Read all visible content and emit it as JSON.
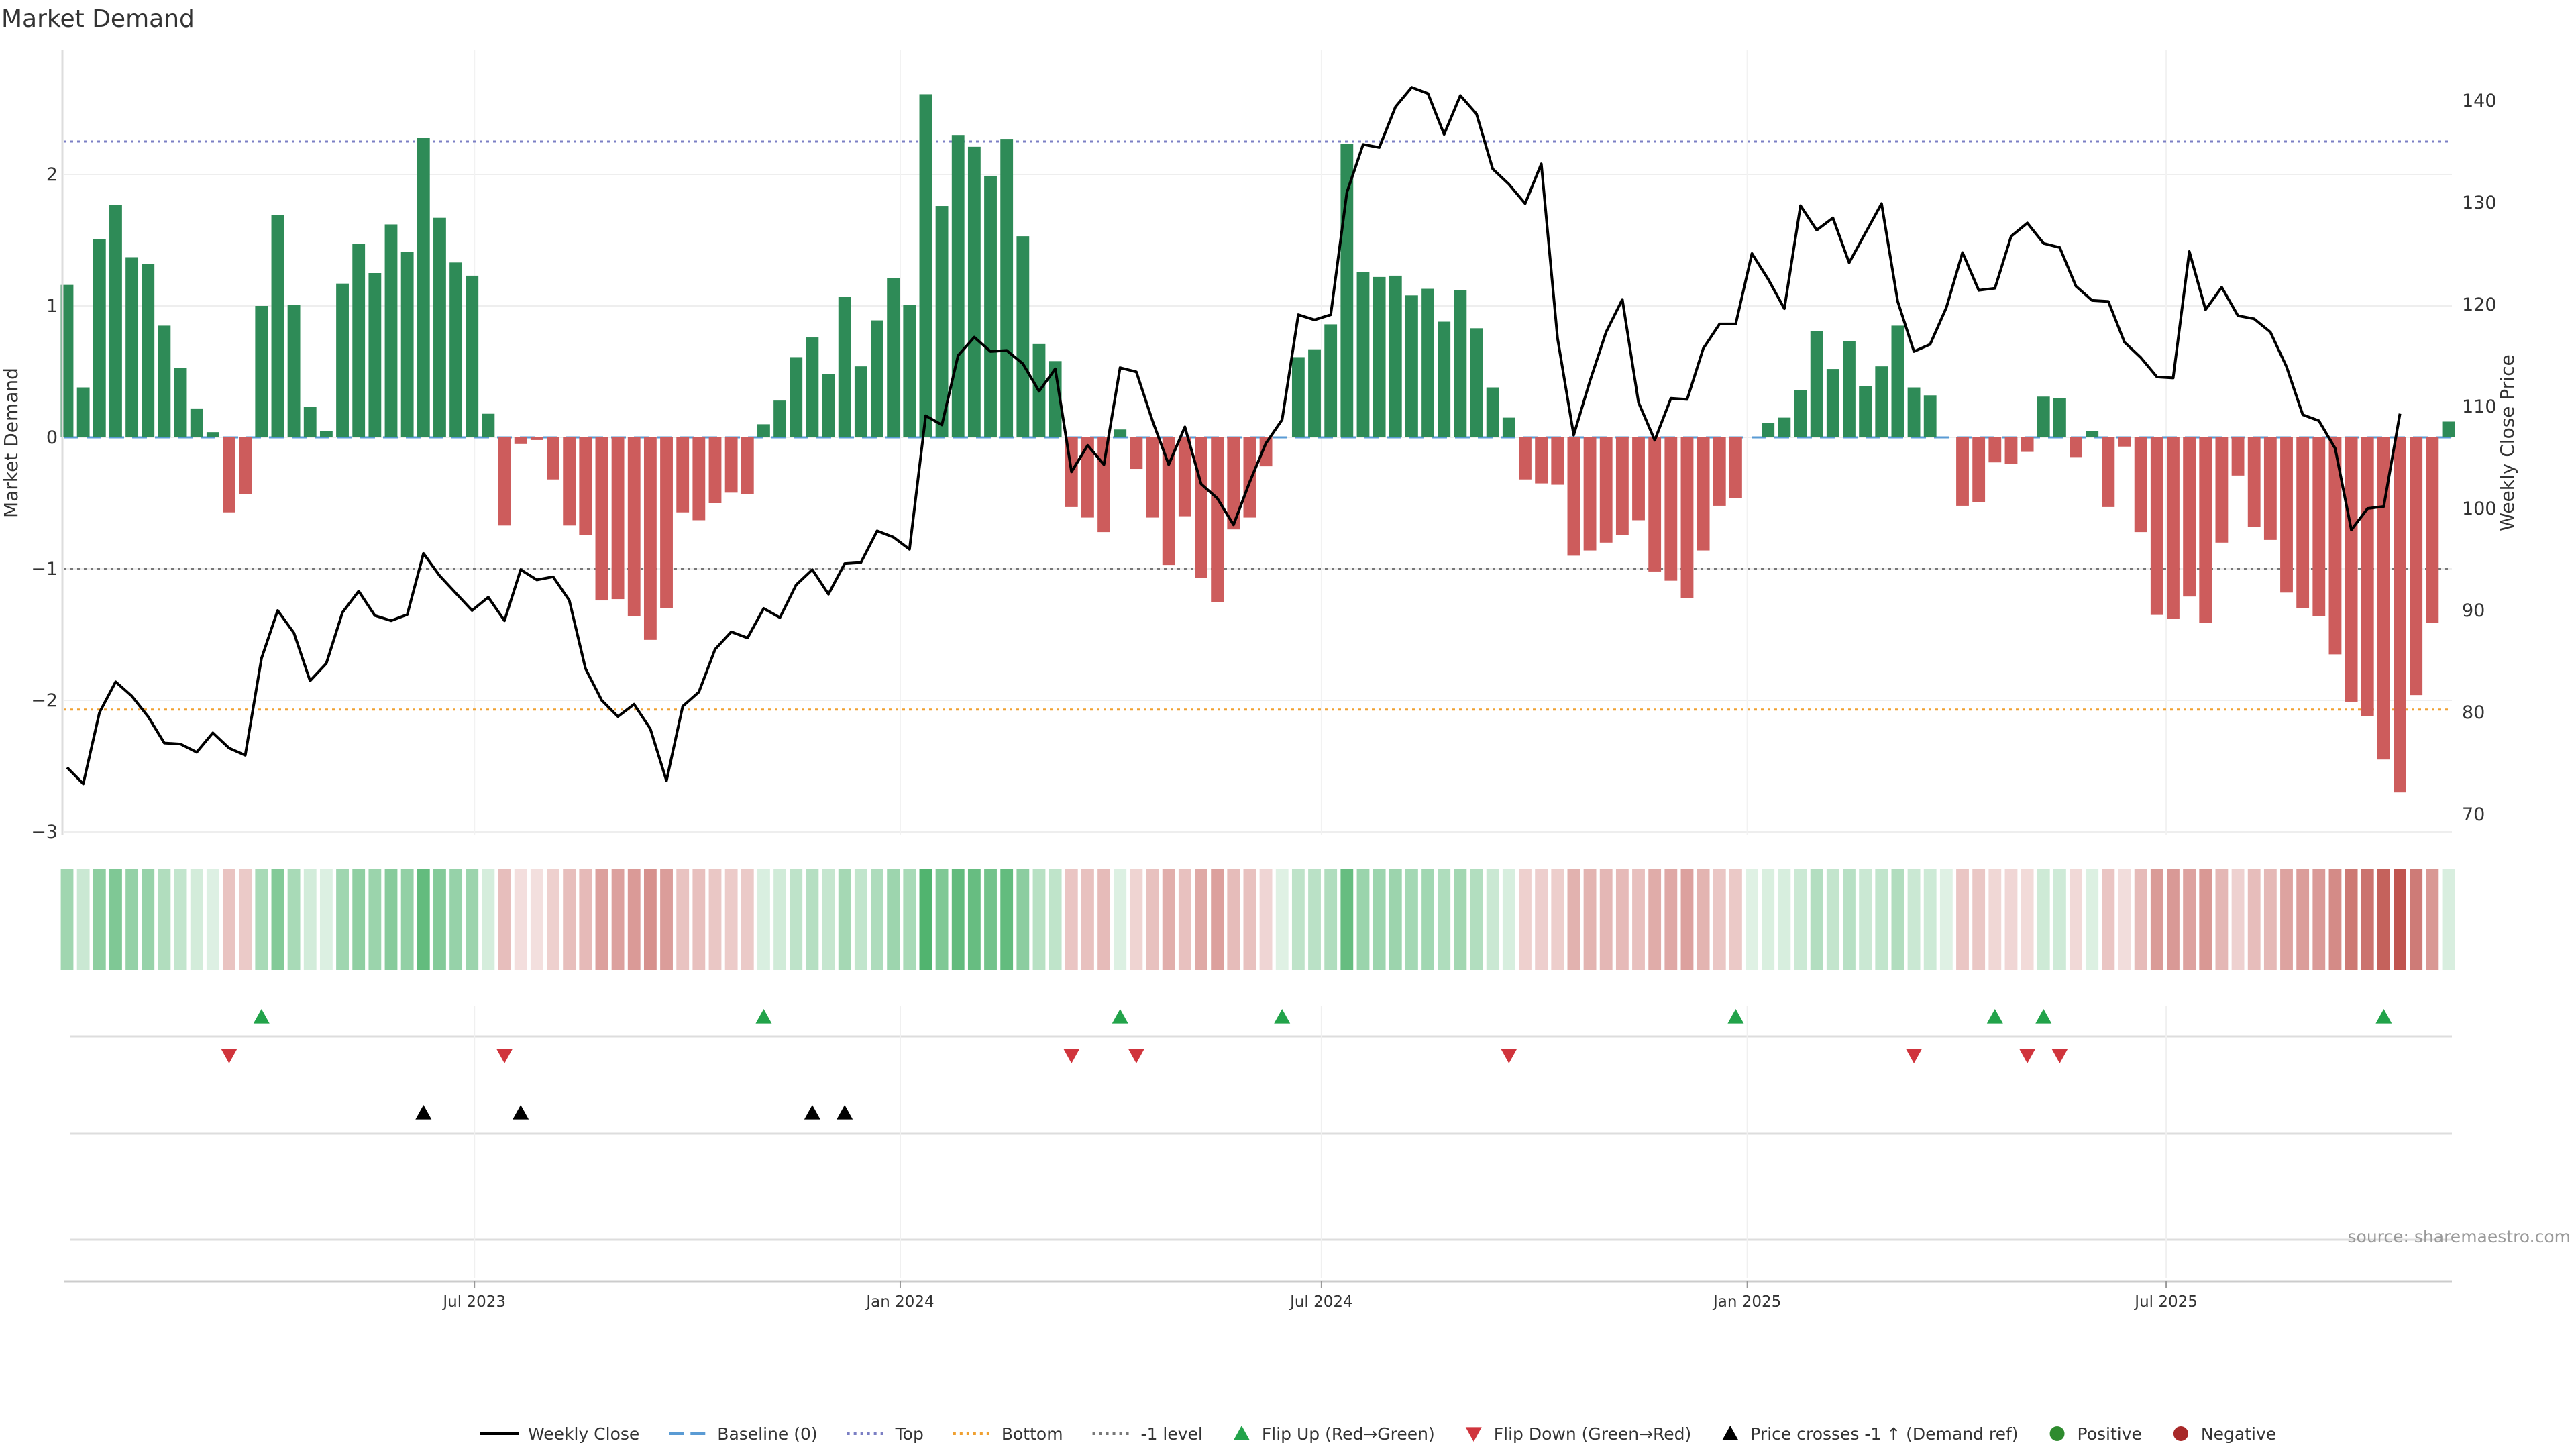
{
  "chart_data": {
    "type": "bar",
    "title": "Market Demand",
    "ylabel": "Market Demand",
    "y2label": "Weekly Close Price",
    "ylim": [
      -3,
      2.8
    ],
    "y2lim": [
      68,
      144
    ],
    "yticks": [
      2,
      1,
      0,
      -1,
      -2,
      -3
    ],
    "ytick_labels": [
      "2",
      "1",
      "0",
      "−1",
      "−2",
      "−3"
    ],
    "y2ticks": [
      140,
      130,
      120,
      110,
      100,
      90,
      80,
      70
    ],
    "levels": {
      "top": 2.25,
      "bottom": -2.07,
      "minus_one": -1.0,
      "baseline": 0
    },
    "x_start": "2023-01-06",
    "x_step_days": 7,
    "x_ticks": [
      {
        "date": "2023-07-01",
        "label": "Jul 2023"
      },
      {
        "date": "2024-01-01",
        "label": "Jan 2024"
      },
      {
        "date": "2024-07-01",
        "label": "Jul 2024"
      },
      {
        "date": "2025-01-01",
        "label": "Jan 2025"
      },
      {
        "date": "2025-07-01",
        "label": "Jul 2025"
      }
    ],
    "demand": [
      1.16,
      0.38,
      1.51,
      1.77,
      1.37,
      1.32,
      0.85,
      0.53,
      0.22,
      0.04,
      -0.57,
      -0.43,
      1.0,
      1.69,
      1.01,
      0.23,
      0.05,
      1.17,
      1.47,
      1.25,
      1.62,
      1.41,
      2.28,
      1.67,
      1.33,
      1.23,
      0.18,
      -0.67,
      -0.05,
      -0.02,
      -0.32,
      -0.67,
      -0.74,
      -1.24,
      -1.23,
      -1.36,
      -1.54,
      -1.3,
      -0.57,
      -0.63,
      -0.5,
      -0.42,
      -0.43,
      0.1,
      0.28,
      0.61,
      0.76,
      0.48,
      1.07,
      0.54,
      0.89,
      1.21,
      1.01,
      2.61,
      1.76,
      2.3,
      2.21,
      1.99,
      2.27,
      1.53,
      0.71,
      0.58,
      -0.53,
      -0.61,
      -0.72,
      0.06,
      -0.24,
      -0.61,
      -0.97,
      -0.6,
      -1.07,
      -1.25,
      -0.7,
      -0.61,
      -0.22,
      0.0,
      0.61,
      0.67,
      0.86,
      2.23,
      1.26,
      1.22,
      1.23,
      1.08,
      1.13,
      0.88,
      1.12,
      0.83,
      0.38,
      0.15,
      -0.32,
      -0.35,
      -0.36,
      -0.9,
      -0.86,
      -0.8,
      -0.74,
      -0.63,
      -1.02,
      -1.09,
      -1.22,
      -0.86,
      -0.52,
      -0.46,
      0.0,
      0.11,
      0.15,
      0.36,
      0.81,
      0.52,
      0.73,
      0.39,
      0.54,
      0.85,
      0.38,
      0.32,
      0.0,
      -0.52,
      -0.49,
      -0.19,
      -0.2,
      -0.11,
      0.31,
      0.3,
      -0.15,
      0.05,
      -0.53,
      -0.07,
      -0.72,
      -1.35,
      -1.38,
      -1.21,
      -1.41,
      -0.8,
      -0.29,
      -0.68,
      -0.78,
      -1.18,
      -1.3,
      -1.36,
      -1.65,
      -2.01,
      -2.12,
      -2.45,
      -2.7,
      -1.96,
      -1.41,
      0.12
    ],
    "price": [
      74.6,
      73.0,
      80.0,
      83.0,
      81.6,
      79.6,
      77.0,
      76.9,
      76.1,
      78.0,
      76.5,
      75.8,
      85.3,
      90.0,
      87.8,
      83.1,
      84.8,
      89.8,
      91.9,
      89.5,
      89.0,
      89.6,
      95.6,
      93.4,
      91.7,
      90.0,
      91.3,
      89.0,
      94.0,
      93.0,
      93.3,
      91.0,
      84.3,
      81.2,
      79.6,
      80.8,
      78.4,
      73.3,
      80.6,
      82.0,
      86.2,
      87.9,
      87.3,
      90.2,
      89.3,
      92.5,
      94.0,
      91.6,
      94.6,
      94.7,
      97.8,
      97.2,
      96.0,
      109.1,
      108.2,
      115.0,
      116.8,
      115.4,
      115.5,
      114.2,
      111.5,
      113.7,
      103.6,
      106.2,
      104.3,
      113.8,
      113.4,
      108.6,
      104.3,
      108.0,
      102.4,
      101.0,
      98.4,
      102.6,
      106.4,
      108.7,
      119.0,
      118.5,
      119.0,
      131.0,
      135.7,
      135.4,
      139.4,
      141.3,
      140.7,
      136.7,
      140.5,
      138.7,
      133.3,
      131.8,
      129.9,
      133.8,
      116.7,
      107.2,
      112.5,
      117.3,
      120.5,
      110.4,
      106.7,
      110.8,
      110.7,
      115.7,
      118.1,
      118.1,
      125.0,
      122.5,
      119.6,
      129.7,
      127.3,
      128.5,
      124.1,
      127.0,
      129.9,
      120.3,
      115.4,
      116.1,
      119.7,
      125.1,
      121.4,
      121.6,
      126.7,
      128.0,
      126.0,
      125.6,
      121.8,
      120.4,
      120.3,
      116.3,
      114.8,
      112.9,
      112.8,
      125.2,
      119.5,
      121.7,
      118.9,
      118.6,
      117.3,
      113.9,
      109.2,
      108.6,
      105.9,
      97.9,
      100.0,
      100.2,
      109.3
    ],
    "flip_up_idx": [
      12,
      43,
      65,
      75,
      103,
      119,
      122,
      143
    ],
    "flip_down_idx": [
      10,
      27,
      62,
      66,
      89,
      114,
      121,
      123
    ],
    "price_cross_idx": [
      22,
      28,
      46,
      48
    ],
    "legend": [
      "Weekly Close",
      "Baseline (0)",
      "Top",
      "Bottom",
      "-1 level",
      "Flip Up (Red→Green)",
      "Flip Down (Green→Red)",
      "Price crosses -1 ↑ (Demand ref)",
      "Positive",
      "Negative"
    ],
    "source": "source: sharemaestro.com"
  },
  "colors": {
    "positive": "#2e8b57",
    "negative": "#cd5c5c",
    "price": "#000000",
    "top": "#7b7fc4",
    "bottom": "#f0a030",
    "minus_one": "#777777",
    "baseline": "#5a9bd4",
    "flip_up": "#22a34a",
    "flip_down": "#d0343c",
    "legend_positive": "#2e8b2e",
    "legend_negative": "#a82828"
  }
}
